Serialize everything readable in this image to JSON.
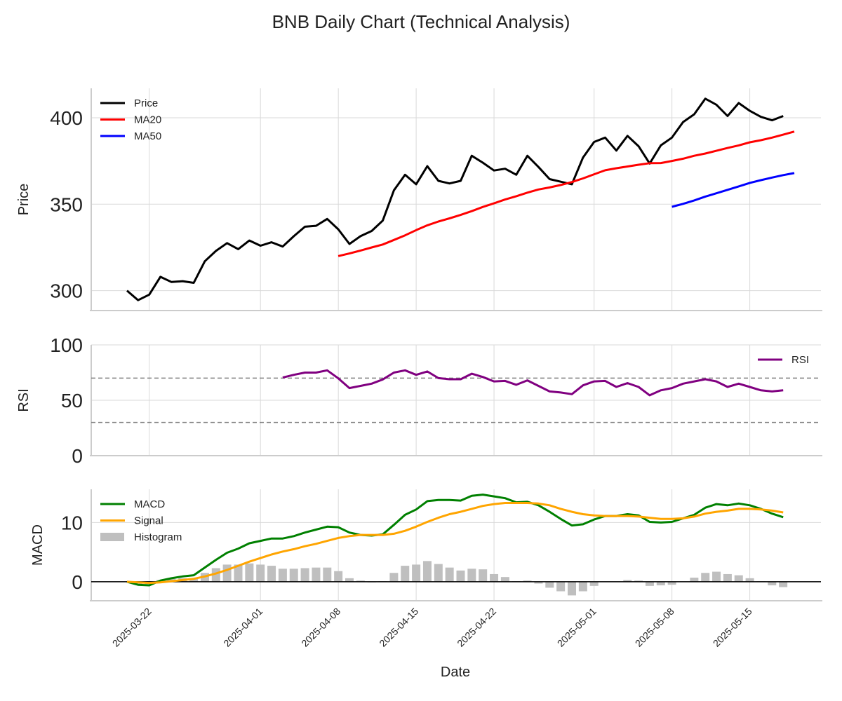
{
  "title": "BNB Daily Chart (Technical Analysis)",
  "chart_data": {
    "type": "line",
    "title": "BNB Daily Chart (Technical Analysis)",
    "xlabel": "Date",
    "x_start": "2025-03-20",
    "days": 61,
    "x_ticks": [
      {
        "day": 2,
        "label": "2025-03-22"
      },
      {
        "day": 12,
        "label": "2025-04-01"
      },
      {
        "day": 19,
        "label": "2025-04-08"
      },
      {
        "day": 26,
        "label": "2025-04-15"
      },
      {
        "day": 33,
        "label": "2025-04-22"
      },
      {
        "day": 42,
        "label": "2025-05-01"
      },
      {
        "day": 49,
        "label": "2025-05-08"
      },
      {
        "day": 56,
        "label": "2025-05-15"
      }
    ],
    "panels": [
      {
        "key": "price",
        "ylabel": "Price",
        "ylim": [
          288.5,
          417
        ],
        "yticks": [
          300,
          350,
          400
        ],
        "legend_position": "upper-left",
        "series": [
          {
            "name": "Price",
            "color": "#000000",
            "start": 0,
            "values": [
              300,
              294.5,
              297.7,
              308,
              305,
              305.5,
              304.5,
              317,
              323,
              327.5,
              324,
              329,
              326,
              328,
              325.5,
              331.5,
              337,
              337.5,
              341.5,
              335.5,
              327,
              331.5,
              334.5,
              340.5,
              358,
              367,
              361.5,
              372,
              363.5,
              362,
              363.5,
              378,
              374,
              369.5,
              370.5,
              367,
              378,
              371.5,
              364.5,
              363,
              361.5,
              377,
              386,
              388.5,
              381,
              389.5,
              383.5,
              373.5,
              384,
              388.5,
              397.5,
              402,
              411,
              407.5,
              401,
              408.5,
              404,
              400.5,
              398.5,
              401
            ]
          },
          {
            "name": "MA20",
            "color": "#ff0000",
            "start": 19,
            "values": [
              320,
              321.5,
              323.2,
              325,
              326.7,
              329.3,
              332,
              335,
              337.8,
              340,
              341.8,
              343.8,
              346,
              348.4,
              350.5,
              352.7,
              354.6,
              356.7,
              358.5,
              359.7,
              361.1,
              362.8,
              364.9,
              367.3,
              369.6,
              370.8,
              371.8,
              372.8,
              373.7,
              373.8,
              375,
              376.3,
              378,
              379.3,
              380.9,
              382.5,
              384,
              385.8,
              387,
              388.5,
              390.2,
              392
            ]
          },
          {
            "name": "MA50",
            "color": "#0000ff",
            "start": 49,
            "values": [
              348.5,
              350.2,
              352.2,
              354.4,
              356.3,
              358.3,
              360.3,
              362.3,
              363.9,
              365.4,
              366.8,
              368
            ]
          }
        ]
      },
      {
        "key": "rsi",
        "ylabel": "RSI",
        "ylim": [
          0,
          100
        ],
        "yticks": [
          0,
          50,
          100
        ],
        "hlines": [
          70,
          30
        ],
        "legend_position": "upper-right",
        "series": [
          {
            "name": "RSI",
            "color": "#800080",
            "start": 14,
            "values": [
              70.5,
              73,
              75,
              75,
              77,
              69.8,
              61,
              63,
              65,
              68.8,
              75,
              77,
              73,
              76,
              70,
              69,
              69,
              74,
              71,
              67,
              67.5,
              64,
              68,
              63,
              58,
              57,
              55.5,
              63.5,
              67,
              67.5,
              62,
              65.5,
              62,
              54.5,
              59,
              61,
              65,
              67,
              69,
              67,
              62,
              65,
              62,
              59,
              58,
              59
            ]
          }
        ]
      },
      {
        "key": "macd",
        "ylabel": "MACD",
        "ylim": [
          -3.2,
          15.6
        ],
        "yticks": [
          0,
          10
        ],
        "zero_line": true,
        "legend_position": "upper-left",
        "series": [
          {
            "name": "MACD",
            "color": "#008000",
            "start": 0,
            "values": [
              0,
              -0.5,
              -0.6,
              0.2,
              0.6,
              0.9,
              1.1,
              2.4,
              3.7,
              4.9,
              5.6,
              6.5,
              6.9,
              7.3,
              7.3,
              7.7,
              8.3,
              8.8,
              9.3,
              9.2,
              8.3,
              7.9,
              7.8,
              8,
              9.6,
              11.3,
              12.2,
              13.6,
              13.8,
              13.8,
              13.7,
              14.5,
              14.7,
              14.4,
              14.1,
              13.4,
              13.5,
              12.9,
              11.8,
              10.6,
              9.5,
              9.7,
              10.5,
              11.1,
              11.1,
              11.4,
              11.2,
              10.1,
              10,
              10.1,
              10.7,
              11.3,
              12.5,
              13.1,
              12.9,
              13.2,
              12.9,
              12.3,
              11.5,
              10.9
            ]
          },
          {
            "name": "Signal",
            "color": "#ffa500",
            "start": 0,
            "values": [
              0,
              -0.1,
              -0.2,
              -0.1,
              0.1,
              0.3,
              0.5,
              0.9,
              1.4,
              2,
              2.7,
              3.4,
              4,
              4.6,
              5.1,
              5.5,
              6,
              6.4,
              6.9,
              7.4,
              7.7,
              7.9,
              7.9,
              7.9,
              8.1,
              8.6,
              9.3,
              10.1,
              10.8,
              11.4,
              11.8,
              12.3,
              12.8,
              13.1,
              13.3,
              13.3,
              13.3,
              13.2,
              12.9,
              12.3,
              11.8,
              11.4,
              11.2,
              11.1,
              11.1,
              11.1,
              11,
              10.8,
              10.6,
              10.6,
              10.7,
              11,
              11.5,
              11.8,
              12,
              12.3,
              12.3,
              12.2,
              12,
              11.7
            ]
          },
          {
            "name": "Histogram",
            "color": "#bfbfbf",
            "kind": "bar",
            "start": 0,
            "values": [
              0,
              -0.4,
              -0.4,
              0.3,
              0.5,
              0.6,
              0.6,
              1.5,
              2.3,
              2.9,
              2.9,
              3.1,
              2.9,
              2.7,
              2.2,
              2.2,
              2.3,
              2.4,
              2.4,
              1.8,
              0.6,
              0.2,
              -0.1,
              0.1,
              1.5,
              2.7,
              2.9,
              3.5,
              3,
              2.4,
              1.9,
              2.2,
              2.1,
              1.3,
              0.8,
              0.1,
              0.2,
              -0.3,
              -1,
              -1.6,
              -2.3,
              -1.6,
              -0.7,
              0,
              0,
              0.3,
              0.2,
              -0.7,
              -0.6,
              -0.5,
              0,
              0.7,
              1.5,
              1.7,
              1.3,
              1.1,
              0.6,
              0.1,
              -0.6,
              -0.9
            ]
          }
        ]
      }
    ]
  }
}
